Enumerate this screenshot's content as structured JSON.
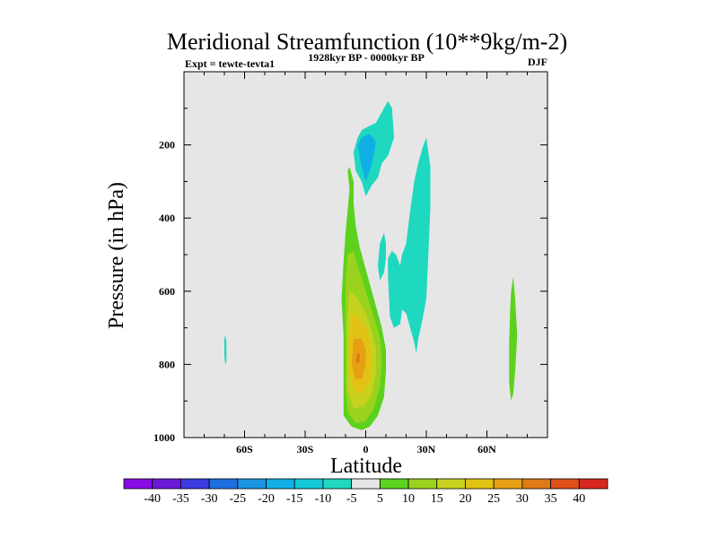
{
  "chart_data": {
    "type": "contour",
    "title": "Meridional Streamfunction (10**9kg/m-2)",
    "left_label": "Expt = tewte-tevta1",
    "center_label": "1928kyr BP - 0000kyr BP",
    "right_label": "DJF",
    "xlabel": "Latitude",
    "ylabel": "Pressure (in hPa)",
    "xlim": [
      -90,
      90
    ],
    "ylim": [
      1000,
      0
    ],
    "x_ticks": [
      {
        "value": -60,
        "label": "60S"
      },
      {
        "value": -30,
        "label": "30S"
      },
      {
        "value": 0,
        "label": "0"
      },
      {
        "value": 30,
        "label": "30N"
      },
      {
        "value": 60,
        "label": "60N"
      }
    ],
    "y_ticks": [
      {
        "value": 200,
        "label": "200"
      },
      {
        "value": 400,
        "label": "400"
      },
      {
        "value": 600,
        "label": "600"
      },
      {
        "value": 800,
        "label": "800"
      },
      {
        "value": 1000,
        "label": "1000"
      }
    ],
    "background_color": "#e6e6e6",
    "colorbar": {
      "levels": [
        "-40",
        "-35",
        "-30",
        "-25",
        "-20",
        "-15",
        "-10",
        "-5",
        "5",
        "10",
        "15",
        "20",
        "25",
        "30",
        "35",
        "40"
      ],
      "colors": [
        "#8a0ae6",
        "#6a1ad6",
        "#3b3be0",
        "#1f6ee0",
        "#1a95e0",
        "#10b0e6",
        "#14c8d8",
        "#1ed8c0",
        "#e6e6e6",
        "#5cd21e",
        "#9bd21e",
        "#c8d21e",
        "#e2c214",
        "#e6a014",
        "#e07a14",
        "#e0501a",
        "#d6281e"
      ]
    },
    "regions": [
      {
        "name": "southern-upper-cell",
        "value": -10,
        "color": "#1ed8c0",
        "points": [
          [
            -6,
            220
          ],
          [
            -4,
            180
          ],
          [
            -2,
            160
          ],
          [
            1,
            150
          ],
          [
            5,
            140
          ],
          [
            8,
            110
          ],
          [
            11,
            80
          ],
          [
            13,
            100
          ],
          [
            14,
            180
          ],
          [
            11,
            230
          ],
          [
            8,
            250
          ],
          [
            6,
            290
          ],
          [
            3,
            310
          ],
          [
            0,
            340
          ],
          [
            -2,
            300
          ],
          [
            -5,
            270
          ]
        ]
      },
      {
        "name": "southern-upper-core",
        "value": -15,
        "color": "#10b0e6",
        "points": [
          [
            -4,
            200
          ],
          [
            -2,
            180
          ],
          [
            2,
            170
          ],
          [
            5,
            190
          ],
          [
            4,
            230
          ],
          [
            2,
            270
          ],
          [
            0,
            300
          ],
          [
            -2,
            260
          ]
        ]
      },
      {
        "name": "northern-cell",
        "value": -10,
        "color": "#1ed8c0",
        "points": [
          [
            20,
            470
          ],
          [
            22,
            380
          ],
          [
            24,
            300
          ],
          [
            26,
            250
          ],
          [
            28,
            210
          ],
          [
            30,
            180
          ],
          [
            32,
            260
          ],
          [
            32,
            370
          ],
          [
            31,
            500
          ],
          [
            30,
            620
          ],
          [
            28,
            680
          ],
          [
            26,
            730
          ],
          [
            25,
            770
          ],
          [
            24,
            740
          ],
          [
            22,
            700
          ],
          [
            20,
            660
          ],
          [
            18,
            650
          ],
          [
            17,
            690
          ],
          [
            14,
            700
          ],
          [
            12,
            670
          ],
          [
            11,
            560
          ],
          [
            11,
            510
          ],
          [
            13,
            490
          ],
          [
            15,
            500
          ],
          [
            17,
            530
          ],
          [
            18,
            500
          ]
        ]
      },
      {
        "name": "northern-side-lobe",
        "value": -10,
        "color": "#1ed8c0",
        "points": [
          [
            7,
            470
          ],
          [
            9,
            440
          ],
          [
            10,
            470
          ],
          [
            10,
            510
          ],
          [
            9,
            550
          ],
          [
            7,
            570
          ],
          [
            6,
            530
          ]
        ]
      },
      {
        "name": "hadley-cell-outer",
        "value": 5,
        "color": "#5cd21e",
        "points": [
          [
            -9,
            270
          ],
          [
            -8,
            320
          ],
          [
            -9,
            380
          ],
          [
            -10,
            440
          ],
          [
            -11,
            520
          ],
          [
            -12,
            620
          ],
          [
            -11,
            720
          ],
          [
            -11,
            800
          ],
          [
            -11,
            880
          ],
          [
            -11,
            940
          ],
          [
            -7,
            970
          ],
          [
            -2,
            980
          ],
          [
            2,
            970
          ],
          [
            6,
            940
          ],
          [
            9,
            890
          ],
          [
            10,
            820
          ],
          [
            10,
            760
          ],
          [
            8,
            700
          ],
          [
            5,
            640
          ],
          [
            1,
            560
          ],
          [
            -3,
            480
          ],
          [
            -5,
            420
          ],
          [
            -6,
            360
          ],
          [
            -6,
            300
          ],
          [
            -8,
            260
          ]
        ]
      },
      {
        "name": "hadley-cell-10",
        "value": 10,
        "color": "#9bd21e",
        "points": [
          [
            -9,
            500
          ],
          [
            -10,
            580
          ],
          [
            -10,
            680
          ],
          [
            -10,
            780
          ],
          [
            -10,
            860
          ],
          [
            -9,
            930
          ],
          [
            -5,
            960
          ],
          [
            0,
            955
          ],
          [
            4,
            920
          ],
          [
            7,
            860
          ],
          [
            8,
            790
          ],
          [
            7,
            730
          ],
          [
            4,
            670
          ],
          [
            0,
            600
          ],
          [
            -4,
            530
          ],
          [
            -6,
            490
          ]
        ]
      },
      {
        "name": "hadley-cell-15",
        "value": 15,
        "color": "#c8d21e",
        "points": [
          [
            -8,
            600
          ],
          [
            -9,
            680
          ],
          [
            -9,
            780
          ],
          [
            -9,
            870
          ],
          [
            -6,
            920
          ],
          [
            -1,
            915
          ],
          [
            3,
            880
          ],
          [
            5,
            820
          ],
          [
            5,
            760
          ],
          [
            3,
            710
          ],
          [
            0,
            660
          ],
          [
            -4,
            620
          ]
        ]
      },
      {
        "name": "hadley-cell-20",
        "value": 20,
        "color": "#e2c214",
        "points": [
          [
            -7,
            660
          ],
          [
            -8,
            740
          ],
          [
            -8,
            830
          ],
          [
            -5,
            880
          ],
          [
            -1,
            875
          ],
          [
            2,
            840
          ],
          [
            3,
            790
          ],
          [
            2,
            740
          ],
          [
            0,
            700
          ],
          [
            -4,
            670
          ]
        ]
      },
      {
        "name": "hadley-cell-25",
        "value": 25,
        "color": "#e6a014",
        "points": [
          [
            -6,
            730
          ],
          [
            -7,
            800
          ],
          [
            -5,
            840
          ],
          [
            -2,
            840
          ],
          [
            0,
            800
          ],
          [
            0,
            760
          ],
          [
            -2,
            730
          ]
        ]
      },
      {
        "name": "hadley-cell-30",
        "value": 30,
        "color": "#e07a14",
        "points": [
          [
            -4,
            770
          ],
          [
            -5,
            790
          ],
          [
            -4,
            800
          ],
          [
            -3,
            790
          ],
          [
            -3,
            770
          ]
        ]
      },
      {
        "name": "polar-sliver",
        "value": -10,
        "color": "#1ed8c0",
        "points": [
          [
            -69.5,
            720
          ],
          [
            -69,
            740
          ],
          [
            -69,
            790
          ],
          [
            -69.5,
            800
          ],
          [
            -70,
            780
          ],
          [
            -70,
            730
          ]
        ]
      },
      {
        "name": "northern-polar-cell",
        "value": 5,
        "color": "#5cd21e",
        "points": [
          [
            72,
            600
          ],
          [
            73,
            560
          ],
          [
            74,
            620
          ],
          [
            75,
            720
          ],
          [
            74,
            820
          ],
          [
            73,
            880
          ],
          [
            72,
            900
          ],
          [
            71,
            850
          ],
          [
            71,
            740
          ],
          [
            71.5,
            650
          ]
        ]
      }
    ]
  }
}
